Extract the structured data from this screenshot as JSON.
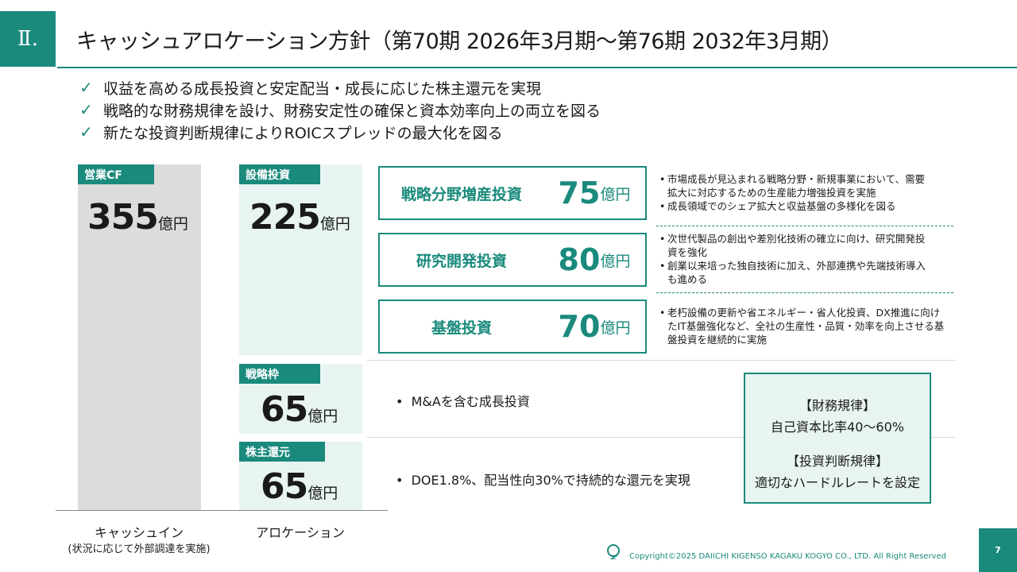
{
  "header": {
    "section_number": "Ⅱ.",
    "title": "キャッシュアロケーション方針（第70期 2026年3月期～第76期 2032年3月期）"
  },
  "bullets": [
    "収益を高める成長投資と安定配当・成長に応じた株主還元を実現",
    "戦略的な財務規律を設け、財務安定性の確保と資本効率向上の両立を図る",
    "新たな投資判断規律によりROICスプレッドの最大化を図る"
  ],
  "cash_in": {
    "tag": "営業CF",
    "value": "355",
    "unit": "億円",
    "caption": "キャッシュイン",
    "subcaption": "(状況に応じて外部調達を実施)"
  },
  "allocation": {
    "caption": "アロケーション",
    "capex": {
      "tag": "設備投資",
      "value": "225",
      "unit": "億円"
    },
    "strategic": {
      "tag": "戦略枠",
      "value": "65",
      "unit": "億円",
      "desc": "M&Aを含む成長投資"
    },
    "returns": {
      "tag": "株主還元",
      "value": "65",
      "unit": "億円",
      "desc": "DOE1.8%、配当性向30%で持続的な還元を実現"
    }
  },
  "investments": [
    {
      "name": "戦略分野増産投資",
      "value": "75",
      "unit": "億円",
      "desc": [
        "市場成長が見込まれる戦略分野・新規事業において、需要拡大に対応するための生産能力増強投資を実施",
        "成長領域でのシェア拡大と収益基盤の多様化を図る"
      ]
    },
    {
      "name": "研究開発投資",
      "value": "80",
      "unit": "億円",
      "desc": [
        "次世代製品の創出や差別化技術の確立に向け、研究開発投資を強化",
        "創業以来培った独自技術に加え、外部連携や先端技術導入も進める"
      ]
    },
    {
      "name": "基盤投資",
      "value": "70",
      "unit": "億円",
      "desc": [
        "老朽設備の更新や省エネルギー・省人化投資、DX推進に向けたIT基盤強化など、全社の生産性・品質・効率を向上させる基盤投資を継続的に実施"
      ]
    }
  ],
  "policy": {
    "fin_title": "【財務規律】",
    "fin_value": "自己資本比率40～60%",
    "inv_title": "【投資判断規律】",
    "inv_value": "適切なハードルレートを設定"
  },
  "footer": {
    "copyright": "Copyright©2025 DAIICHI KIGENSO KAGAKU KOGYO CO., LTD. All Right Reserved",
    "page": "7"
  },
  "colors": {
    "accent": "#1a8a7c",
    "light_bg": "#e8f4f2",
    "bar_gray": "#dcdcdc"
  }
}
